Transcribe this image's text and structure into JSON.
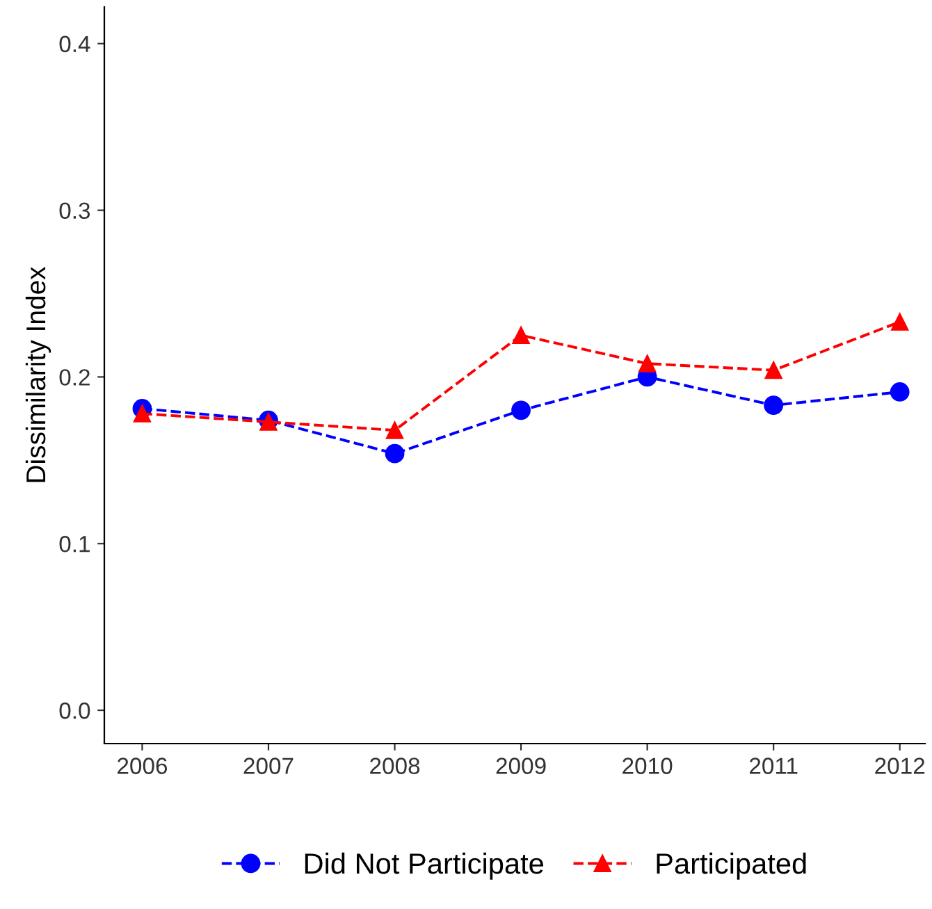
{
  "chart_data": {
    "type": "line",
    "ylabel": "Dissimilarity Index",
    "x": [
      2006,
      2007,
      2008,
      2009,
      2010,
      2011,
      2012
    ],
    "series": [
      {
        "name": "Did Not Participate",
        "color": "#0000ff",
        "marker": "circle",
        "values": [
          0.181,
          0.174,
          0.154,
          0.18,
          0.2,
          0.183,
          0.191
        ]
      },
      {
        "name": "Participated",
        "color": "#ff0000",
        "marker": "triangle",
        "values": [
          0.178,
          0.173,
          0.168,
          0.225,
          0.208,
          0.204,
          0.233
        ]
      }
    ],
    "xlim": [
      2005.7,
      2012.2
    ],
    "xticks": [
      2006,
      2007,
      2008,
      2009,
      2010,
      2011,
      2012
    ],
    "ylim": [
      -0.02,
      0.422
    ],
    "yticks": [
      {
        "value": 0,
        "label": "0.0"
      },
      0.1,
      0.2,
      0.3,
      0.4
    ],
    "line_style": "dashed",
    "grid": false,
    "legend": "bottom"
  }
}
